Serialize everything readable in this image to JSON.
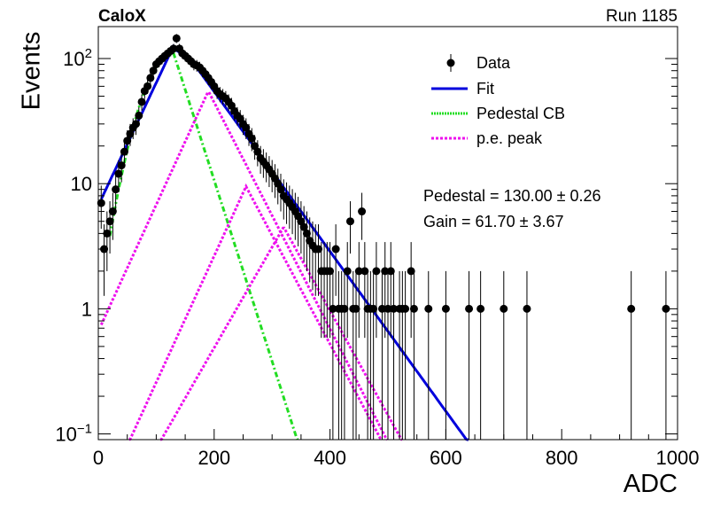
{
  "header": {
    "experiment": "CaloX",
    "run": "Run 1185"
  },
  "fit_results": {
    "pedestal": "Pedestal = 130.00 ± 0.26",
    "gain": "Gain = 61.70 ± 3.67"
  },
  "colors": {
    "data": "#000000",
    "fit": "#0000dd",
    "pedestal": "#22dd22",
    "pe": "#ee11ee"
  },
  "chart_data": {
    "type": "scatter",
    "xlabel": "ADC",
    "ylabel": "Events",
    "xlim": [
      0,
      1000
    ],
    "ylim": [
      0.09,
      180
    ],
    "yscale": "log",
    "grid": false,
    "legend_position": "top-right",
    "x_ticks": [
      0,
      200,
      400,
      600,
      800,
      1000
    ],
    "y_ticks": [
      {
        "value": 0.1,
        "base": "10",
        "exp": "−1"
      },
      {
        "value": 1,
        "label": "1"
      },
      {
        "value": 10,
        "label": "10"
      },
      {
        "value": 100,
        "base": "10",
        "exp": "2"
      }
    ],
    "legend": [
      {
        "name": "Data",
        "style": "marker"
      },
      {
        "name": "Fit",
        "style": "solid"
      },
      {
        "name": "Pedestal CB",
        "style": "dotted"
      },
      {
        "name": "p.e. peak",
        "style": "dotted"
      }
    ],
    "series": [
      {
        "name": "Data",
        "points": [
          [
            5,
            7
          ],
          [
            10,
            3
          ],
          [
            15,
            4
          ],
          [
            20,
            5
          ],
          [
            25,
            6
          ],
          [
            30,
            9
          ],
          [
            35,
            12
          ],
          [
            40,
            14
          ],
          [
            45,
            18
          ],
          [
            50,
            22
          ],
          [
            55,
            25
          ],
          [
            60,
            28
          ],
          [
            65,
            30
          ],
          [
            70,
            35
          ],
          [
            75,
            45
          ],
          [
            80,
            55
          ],
          [
            85,
            60
          ],
          [
            90,
            70
          ],
          [
            95,
            80
          ],
          [
            100,
            90
          ],
          [
            105,
            95
          ],
          [
            110,
            100
          ],
          [
            115,
            105
          ],
          [
            120,
            110
          ],
          [
            125,
            115
          ],
          [
            130,
            120
          ],
          [
            135,
            145
          ],
          [
            140,
            120
          ],
          [
            145,
            110
          ],
          [
            150,
            105
          ],
          [
            155,
            100
          ],
          [
            160,
            95
          ],
          [
            165,
            90
          ],
          [
            170,
            88
          ],
          [
            175,
            85
          ],
          [
            180,
            80
          ],
          [
            185,
            75
          ],
          [
            190,
            70
          ],
          [
            195,
            65
          ],
          [
            200,
            60
          ],
          [
            205,
            55
          ],
          [
            210,
            52
          ],
          [
            215,
            50
          ],
          [
            220,
            48
          ],
          [
            225,
            45
          ],
          [
            230,
            42
          ],
          [
            235,
            38
          ],
          [
            240,
            35
          ],
          [
            245,
            33
          ],
          [
            250,
            30
          ],
          [
            255,
            28
          ],
          [
            260,
            25
          ],
          [
            265,
            23
          ],
          [
            270,
            20
          ],
          [
            275,
            18
          ],
          [
            280,
            16
          ],
          [
            285,
            15
          ],
          [
            290,
            14
          ],
          [
            295,
            13
          ],
          [
            300,
            12
          ],
          [
            305,
            11
          ],
          [
            310,
            10
          ],
          [
            315,
            9
          ],
          [
            320,
            8
          ],
          [
            325,
            7.5
          ],
          [
            330,
            7
          ],
          [
            335,
            6.5
          ],
          [
            340,
            6
          ],
          [
            345,
            5.5
          ],
          [
            350,
            5
          ],
          [
            355,
            4.5
          ],
          [
            360,
            4
          ],
          [
            365,
            3.5
          ],
          [
            370,
            3.2
          ],
          [
            375,
            3
          ],
          [
            380,
            3
          ],
          [
            385,
            2
          ],
          [
            390,
            2
          ],
          [
            395,
            2
          ],
          [
            400,
            2
          ],
          [
            405,
            1
          ],
          [
            410,
            3
          ],
          [
            415,
            1
          ],
          [
            420,
            1
          ],
          [
            425,
            1
          ],
          [
            430,
            2
          ],
          [
            435,
            5
          ],
          [
            440,
            1
          ],
          [
            445,
            1
          ],
          [
            450,
            2
          ],
          [
            455,
            6
          ],
          [
            460,
            2
          ],
          [
            465,
            1
          ],
          [
            470,
            1
          ],
          [
            475,
            1
          ],
          [
            480,
            2
          ],
          [
            490,
            1
          ],
          [
            495,
            2
          ],
          [
            500,
            1
          ],
          [
            505,
            2
          ],
          [
            510,
            1
          ],
          [
            520,
            1
          ],
          [
            525,
            1
          ],
          [
            530,
            1
          ],
          [
            540,
            2
          ],
          [
            545,
            1
          ],
          [
            570,
            1
          ],
          [
            600,
            1
          ],
          [
            640,
            1
          ],
          [
            660,
            1
          ],
          [
            700,
            1
          ],
          [
            740,
            1
          ],
          [
            920,
            1
          ],
          [
            980,
            1
          ]
        ]
      },
      {
        "name": "Fit",
        "style": "solid"
      },
      {
        "name": "Pedestal CB",
        "style": "dotted"
      },
      {
        "name": "p.e. peak",
        "style": "dotted"
      }
    ]
  }
}
